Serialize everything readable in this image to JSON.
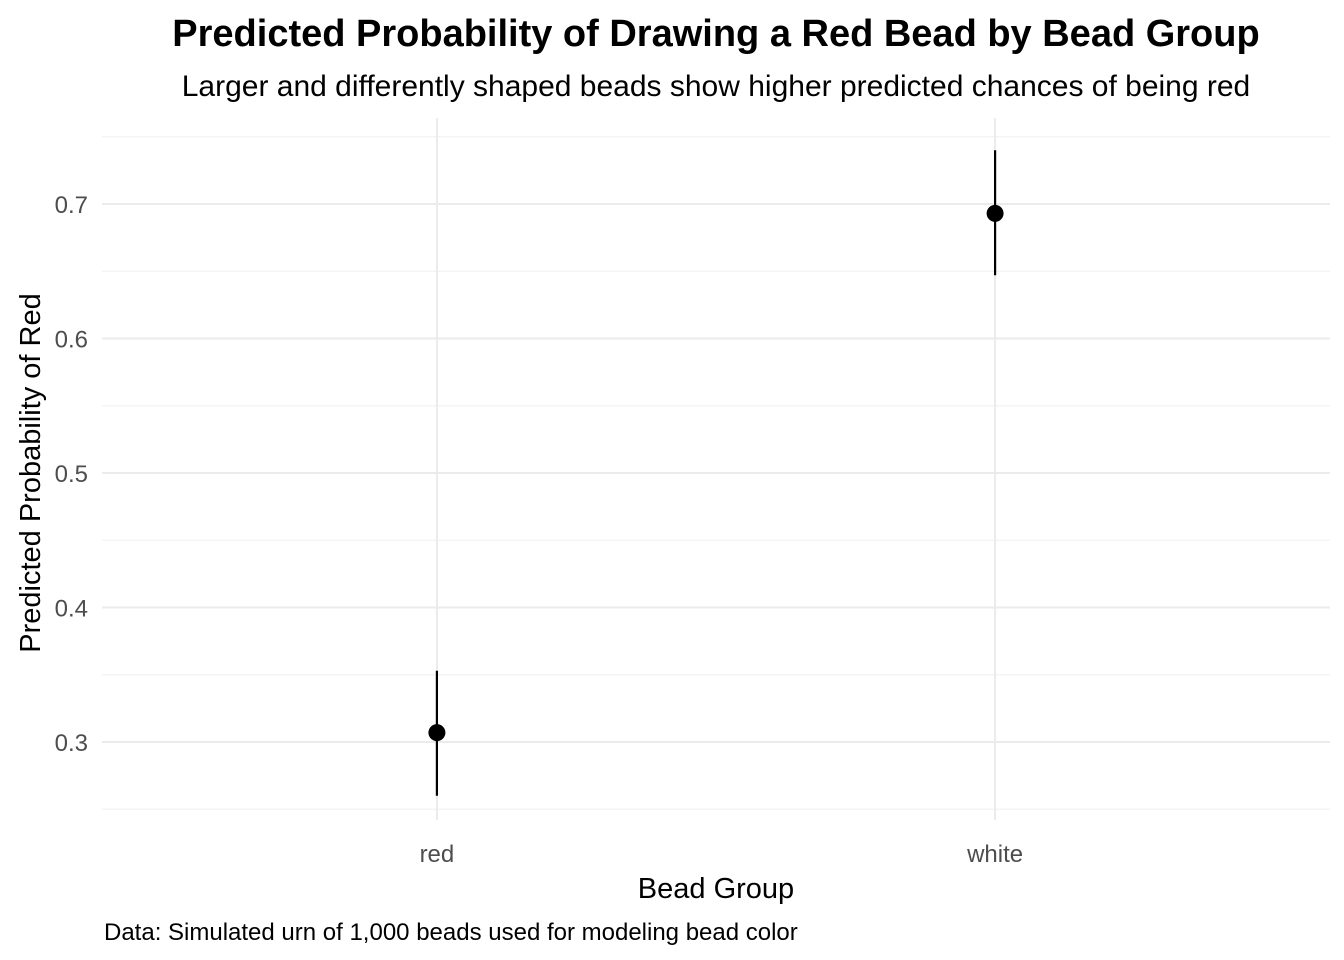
{
  "chart_data": {
    "type": "scatter",
    "title": "Predicted Probability of Drawing a Red Bead by Bead Group",
    "subtitle": "Larger and differently shaped beads show higher predicted chances of being red",
    "xlabel": "Bead Group",
    "ylabel": "Predicted Probability of Red",
    "caption": "Data: Simulated urn of 1,000 beads used for modeling bead color",
    "categories": [
      "red",
      "white"
    ],
    "series": [
      {
        "values": [
          0.307,
          0.693
        ],
        "lower": [
          0.26,
          0.647
        ],
        "upper": [
          0.353,
          0.74
        ]
      }
    ],
    "yticks": [
      "0.3",
      "0.4",
      "0.5",
      "0.6",
      "0.7"
    ],
    "ylim": [
      0.25,
      0.75
    ],
    "grid": true,
    "legend": "none",
    "colors": {
      "point": "#000000",
      "errorbar": "#000000",
      "grid_major": "#ebebeb",
      "grid_minor": "#f2f2f2",
      "tick_text": "#4d4d4d"
    }
  }
}
